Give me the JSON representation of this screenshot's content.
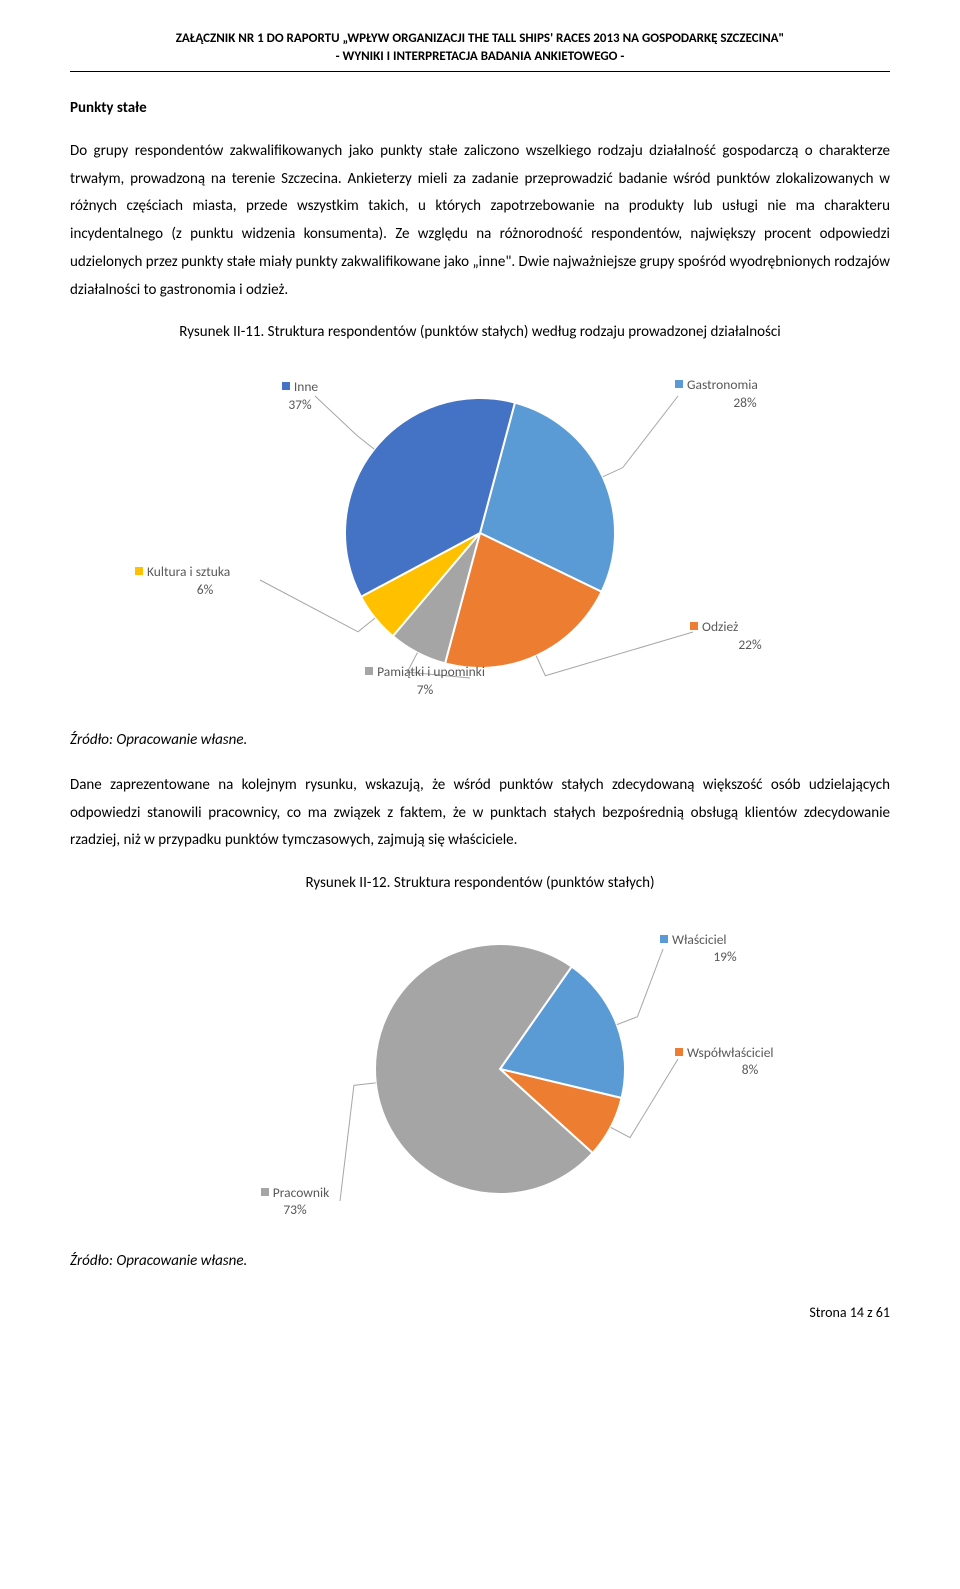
{
  "header": {
    "line1": "ZAŁĄCZNIK NR 1 DO RAPORTU „WPŁYW ORGANIZACJI THE TALL SHIPS' RACES 2013 NA GOSPODARKĘ SZCZECINA\"",
    "line2": "- WYNIKI I INTERPRETACJA BADANIA ANKIETOWEGO -"
  },
  "section_title": "Punkty stałe",
  "para1": "Do grupy respondentów zakwalifikowanych jako punkty stałe zaliczono wszelkiego rodzaju działalność gospodarczą o charakterze trwałym, prowadzoną na terenie Szczecina. Ankieterzy mieli za zadanie przeprowadzić badanie wśród punktów zlokalizowanych w różnych częściach miasta, przede wszystkim takich, u których zapotrzebowanie na produkty lub usługi nie ma charakteru incydentalnego (z punktu widzenia konsumenta). Ze względu na różnorodność respondentów, największy procent odpowiedzi udzielonych przez punkty stałe miały punkty zakwalifikowane jako „inne\". Dwie najważniejsze grupy spośród wyodrębnionych rodzajów działalności to gastronomia i odzież.",
  "fig1": {
    "title": "Rysunek II-11. Struktura respondentów (punktów stałych) według rodzaju prowadzonej działalności",
    "type": "pie",
    "slices": [
      {
        "label": "Gastronomia",
        "value": 28,
        "color": "#5b9bd5"
      },
      {
        "label": "Odzież",
        "value": 22,
        "color": "#ed7d31"
      },
      {
        "label": "Pamiątki i upominki",
        "value": 7,
        "color": "#a5a5a5"
      },
      {
        "label": "Kultura i sztuka",
        "value": 6,
        "color": "#ffc000"
      },
      {
        "label": "Inne",
        "value": 37,
        "color": "#4472c4"
      }
    ],
    "start_angle_deg": -75,
    "stroke": "#ffffff",
    "stroke_width": 2,
    "leader_color": "#a6a6a6"
  },
  "source1": "Źródło: Opracowanie własne.",
  "para2": "Dane zaprezentowane na kolejnym rysunku, wskazują, że wśród punktów stałych zdecydowaną większość osób udzielających odpowiedzi stanowili pracownicy, co ma związek z faktem, że w punktach stałych bezpośrednią obsługą klientów zdecydowanie rzadziej, niż w przypadku punktów tymczasowych, zajmują się właściciele.",
  "fig2": {
    "title": "Rysunek II-12. Struktura respondentów (punktów stałych)",
    "type": "pie",
    "slices": [
      {
        "label": "Właściciel",
        "value": 19,
        "color": "#5b9bd5"
      },
      {
        "label": "Współwłaściciel",
        "value": 8,
        "color": "#ed7d31"
      },
      {
        "label": "Pracownik",
        "value": 73,
        "color": "#a5a5a5"
      }
    ],
    "start_angle_deg": -55,
    "stroke": "#ffffff",
    "stroke_width": 2,
    "leader_color": "#a6a6a6"
  },
  "source2": "Źródło: Opracowanie własne.",
  "footer": "Strona 14 z 61",
  "colors": {
    "text": "#000000",
    "label_text": "#595959",
    "background": "#ffffff"
  },
  "fonts": {
    "body_family": "Calibri, Arial, sans-serif",
    "body_size_pt": 11,
    "header_size_pt": 10,
    "label_size_pt": 10
  }
}
